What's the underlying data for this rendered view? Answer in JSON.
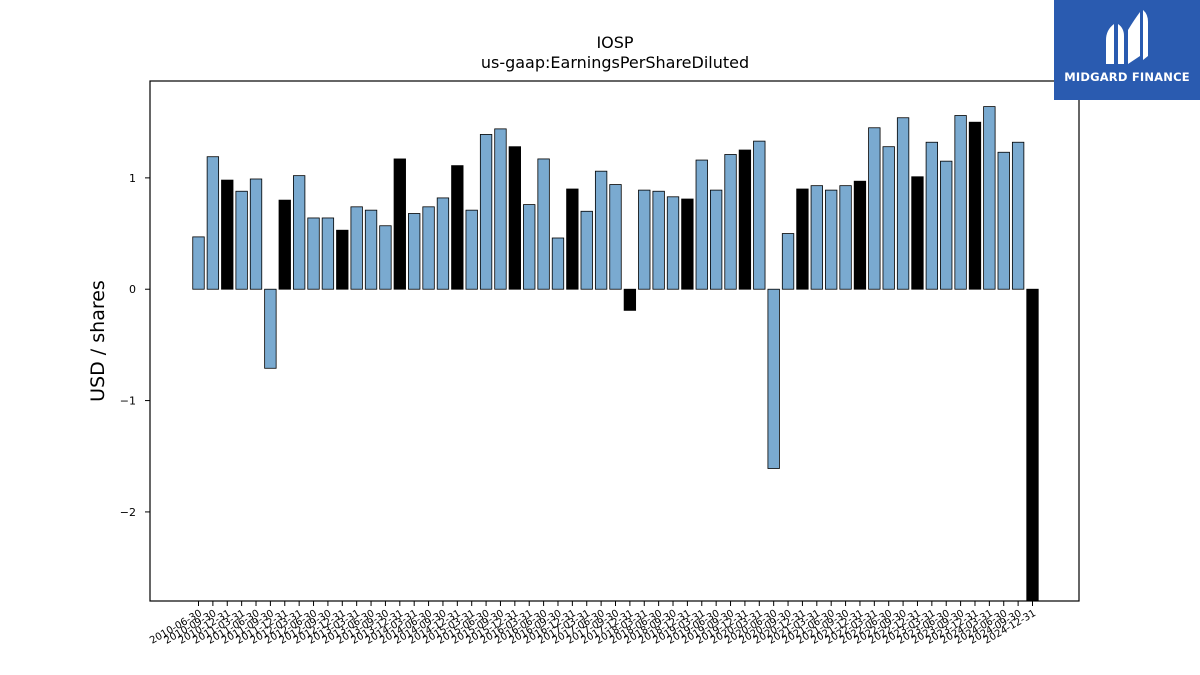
{
  "brand": {
    "name": "MIDGARD FINANCE",
    "bg_color": "#2a5bb0"
  },
  "chart_data": {
    "type": "bar",
    "title": "IOSP",
    "subtitle": "us-gaap:EarningsPerShareDiluted",
    "xlabel": "",
    "ylabel": "USD / shares",
    "ylim": [
      -2.8,
      1.87
    ],
    "yticks": [
      1,
      0,
      -1,
      -2
    ],
    "ytick_labels": [
      "1",
      "0",
      "−1",
      "−2"
    ],
    "grid": false,
    "colors": {
      "regular": "#7aaad0",
      "highlight": "#000000",
      "edge": "#000000"
    },
    "categories": [
      "2010-06-30",
      "2010-09-30",
      "2010-12-31",
      "2011-03-31",
      "2011-06-30",
      "2011-09-30",
      "2011-12-31",
      "2012-03-31",
      "2012-06-30",
      "2012-09-30",
      "2012-12-31",
      "2013-03-31",
      "2013-06-30",
      "2013-09-30",
      "2013-12-31",
      "2014-03-31",
      "2014-06-30",
      "2014-09-30",
      "2014-12-31",
      "2015-03-31",
      "2015-06-30",
      "2015-09-30",
      "2015-12-31",
      "2016-03-31",
      "2016-06-30",
      "2016-09-30",
      "2016-12-31",
      "2017-03-31",
      "2017-06-30",
      "2017-09-30",
      "2017-12-31",
      "2018-03-31",
      "2018-06-30",
      "2018-09-30",
      "2018-12-31",
      "2019-03-31",
      "2019-06-30",
      "2019-09-30",
      "2019-12-31",
      "2020-03-31",
      "2020-06-30",
      "2020-09-30",
      "2020-12-31",
      "2021-03-31",
      "2021-06-30",
      "2021-09-30",
      "2021-12-31",
      "2022-03-31",
      "2022-06-30",
      "2022-09-30",
      "2022-12-31",
      "2023-03-31",
      "2023-06-30",
      "2023-09-30",
      "2023-12-31",
      "2024-03-31",
      "2024-06-30",
      "2024-09-30",
      "2024-12-31"
    ],
    "tick_labels": [
      "2010-06-30",
      "2010-09-30",
      "2010-12-31",
      "2011-03-31",
      "2011-06-30",
      "2011-09-30",
      "2011-12-31",
      "2012-03-31",
      "2012-06-30",
      "2012-09-30",
      "2012-12-31",
      "2013-03-31",
      "2013-06-30",
      "2013-09-30",
      "2013-12-31",
      "2014-03-31",
      "2014-06-30",
      "2014-09-30",
      "2014-12-31",
      "2015-03-31",
      "2015-06-30",
      "2015-09-30",
      "2015-12-31",
      "2016-03-31",
      "2016-06-30",
      "2016-09-30",
      "2016-12-31",
      "2017-03-31",
      "2017-06-30",
      "2017-09-30",
      "2017-12-31",
      "2018-03-31",
      "2018-06-30",
      "2018-09-30",
      "2018-12-31",
      "2019-03-31",
      "2019-06-30",
      "2019-09-30",
      "2019-12-31",
      "2020-03-31",
      "2020-06-30",
      "2020-09-30",
      "2020-12-31",
      "2021-03-31",
      "2021-06-30",
      "2021-09-30",
      "2021-12-31",
      "2022-03-31",
      "2022-06-30",
      "2022-09-30",
      "2022-12-31",
      "2023-03-31",
      "2023-06-30",
      "2023-09-30",
      "2023-12-31",
      "2024-03-31",
      "2024-06-30",
      "2024-09-30",
      "2024-12-31"
    ],
    "values": [
      0.47,
      1.19,
      0.98,
      0.88,
      0.99,
      -0.71,
      0.8,
      1.02,
      0.64,
      0.64,
      0.53,
      0.74,
      0.71,
      0.57,
      1.17,
      0.68,
      0.74,
      0.82,
      1.11,
      0.71,
      1.39,
      1.44,
      1.28,
      0.76,
      1.17,
      0.46,
      0.9,
      0.7,
      1.06,
      0.94,
      -0.19,
      0.89,
      0.88,
      0.83,
      0.81,
      1.16,
      0.89,
      1.21,
      1.25,
      1.33,
      -1.61,
      0.5,
      0.9,
      0.93,
      0.89,
      0.93,
      0.97,
      1.45,
      1.28,
      1.54,
      1.01,
      1.32,
      1.15,
      1.56,
      1.5,
      1.64,
      1.23,
      1.32,
      -2.8
    ],
    "highlight": [
      false,
      false,
      true,
      false,
      false,
      false,
      true,
      false,
      false,
      false,
      true,
      false,
      false,
      false,
      true,
      false,
      false,
      false,
      true,
      false,
      false,
      false,
      true,
      false,
      false,
      false,
      true,
      false,
      false,
      false,
      true,
      false,
      false,
      false,
      true,
      false,
      false,
      false,
      true,
      false,
      false,
      false,
      true,
      false,
      false,
      false,
      true,
      false,
      false,
      false,
      true,
      false,
      false,
      false,
      true,
      false,
      false,
      false,
      true
    ]
  }
}
